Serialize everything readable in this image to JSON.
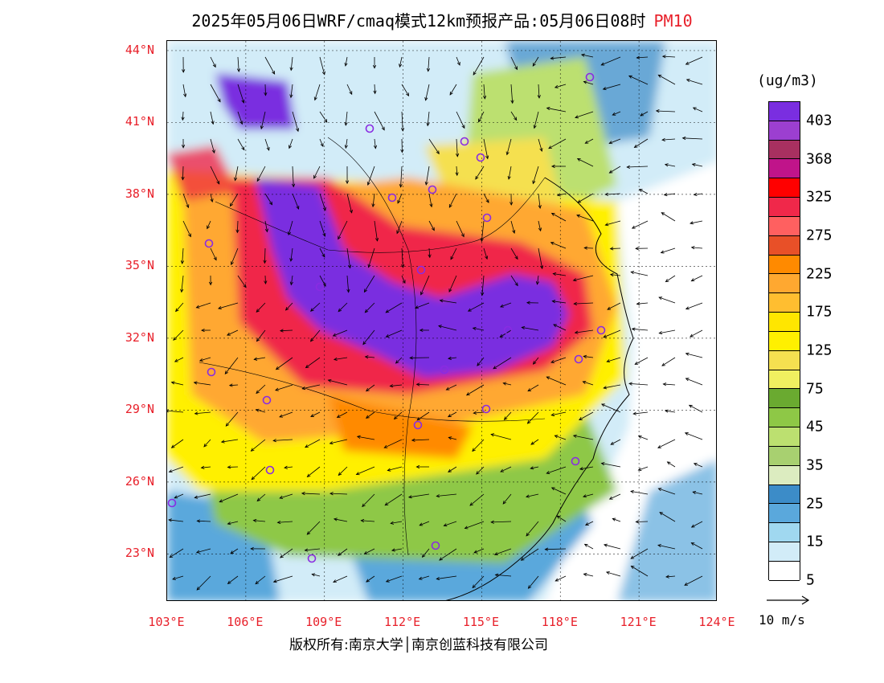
{
  "header": {
    "title": "2025年05月06日WRF/cmaq模式12km预报产品:05月06日08时",
    "product": "PM10"
  },
  "map": {
    "lat_labels": [
      "44°N",
      "41°N",
      "38°N",
      "35°N",
      "32°N",
      "29°N",
      "26°N",
      "23°N"
    ],
    "lon_labels": [
      "103°E",
      "106°E",
      "109°E",
      "112°E",
      "115°E",
      "118°E",
      "121°E",
      "124°E"
    ],
    "extent": {
      "lon_min": 103,
      "lon_max": 124,
      "lat_min": 21,
      "lat_max": 44.4
    }
  },
  "legend": {
    "unit": "(ug/m3)",
    "labels": [
      "403",
      "368",
      "325",
      "275",
      "225",
      "175",
      "125",
      "75",
      "45",
      "35",
      "25",
      "15",
      "5"
    ],
    "colors": [
      "#7a2ee0",
      "#9c3fd0",
      "#a83060",
      "#c0148a",
      "#ff0000",
      "#f0284a",
      "#ff6060",
      "#e85028",
      "#ff8a00",
      "#ffa830",
      "#ffbe30",
      "#ffe600",
      "#fff000",
      "#f5e050",
      "#f0f060",
      "#6aaa30",
      "#8ec846",
      "#bce070",
      "#a8d070",
      "#dcecc0",
      "#3c8cc8",
      "#5aa8dc",
      "#a0d8f0",
      "#d2ecf8",
      "#ffffff"
    ]
  },
  "wind_reference": {
    "label": "10 m/s"
  },
  "footer": {
    "copyright": "版权所有:南京大学│南京创蓝科技有限公司"
  }
}
